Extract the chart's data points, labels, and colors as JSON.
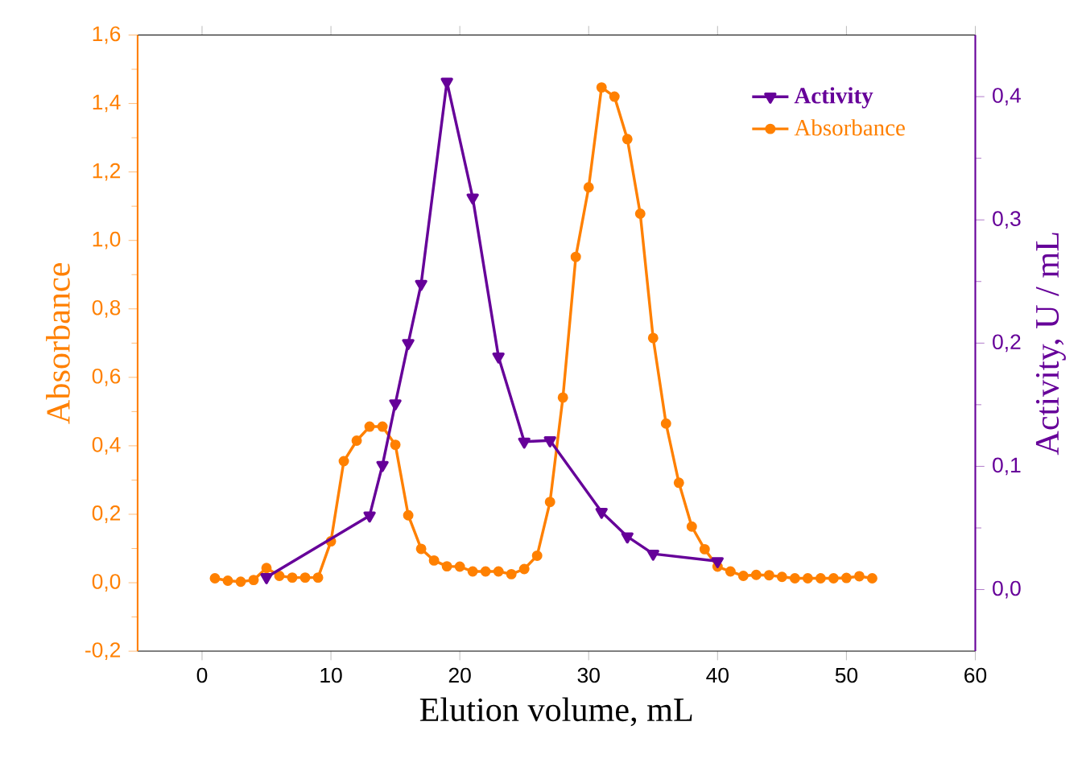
{
  "chart_data": {
    "type": "line",
    "xlabel": "Elution volume, mL",
    "ylabel": "Absorbance",
    "y2label": "Activity,  U / mL",
    "xlim": [
      -5,
      60
    ],
    "xticks": [
      0,
      10,
      20,
      30,
      40,
      50,
      60
    ],
    "ylim": [
      -0.2,
      1.6
    ],
    "yticks": [
      {
        "value": -0.2,
        "label": "-0,2"
      },
      {
        "value": 0,
        "label": "0,0"
      },
      {
        "value": 0.2,
        "label": "0,2"
      },
      {
        "value": 0.4,
        "label": "0,4"
      },
      {
        "value": 0.6,
        "label": "0,6"
      },
      {
        "value": 0.8,
        "label": "0,8"
      },
      {
        "value": 1.0,
        "label": "1,0"
      },
      {
        "value": 1.2,
        "label": "1,2"
      },
      {
        "value": 1.4,
        "label": "1,4"
      },
      {
        "value": 1.6,
        "label": "1,6"
      }
    ],
    "y2lim": [
      -0.05,
      0.45
    ],
    "y2ticks": [
      {
        "value": 0,
        "label": "0,0"
      },
      {
        "value": 0.1,
        "label": "0,1"
      },
      {
        "value": 0.2,
        "label": "0,2"
      },
      {
        "value": 0.3,
        "label": "0,3"
      },
      {
        "value": 0.4,
        "label": "0,4"
      }
    ],
    "legend": "top right",
    "grid": false,
    "line_style": "solid",
    "series": [
      {
        "name": "Activity",
        "color": "#660099",
        "axis": "y2",
        "marker": "triangle",
        "x": [
          5,
          13,
          14,
          15,
          16,
          17,
          19,
          21,
          23,
          25,
          27,
          31,
          33,
          35,
          40
        ],
        "values": [
          0.01,
          0.06,
          0.101,
          0.151,
          0.2,
          0.248,
          0.412,
          0.318,
          0.189,
          0.12,
          0.121,
          0.063,
          0.043,
          0.029,
          0.023
        ]
      },
      {
        "name": "Absorbance",
        "color": "#ff8000",
        "marker": "circle",
        "x": [
          1,
          2,
          3,
          4,
          5,
          6,
          7,
          8,
          9,
          10,
          11,
          12,
          13,
          14,
          15,
          16,
          17,
          18,
          19,
          20,
          21,
          22,
          23,
          24,
          25,
          26,
          27,
          28,
          29,
          30,
          31,
          32,
          33,
          34,
          35,
          36,
          37,
          38,
          39,
          40,
          41,
          42,
          43,
          44,
          45,
          46,
          47,
          48,
          49,
          50,
          51,
          52
        ],
        "values": [
          0.013,
          0.006,
          0.003,
          0.008,
          0.043,
          0.02,
          0.015,
          0.015,
          0.015,
          0.121,
          0.355,
          0.415,
          0.456,
          0.456,
          0.403,
          0.197,
          0.099,
          0.065,
          0.048,
          0.047,
          0.033,
          0.033,
          0.033,
          0.025,
          0.04,
          0.079,
          0.236,
          0.541,
          0.952,
          1.155,
          1.447,
          1.42,
          1.296,
          1.078,
          0.715,
          0.465,
          0.292,
          0.164,
          0.098,
          0.047,
          0.033,
          0.02,
          0.023,
          0.022,
          0.017,
          0.013,
          0.013,
          0.013,
          0.013,
          0.014,
          0.019,
          0.013
        ]
      }
    ]
  }
}
